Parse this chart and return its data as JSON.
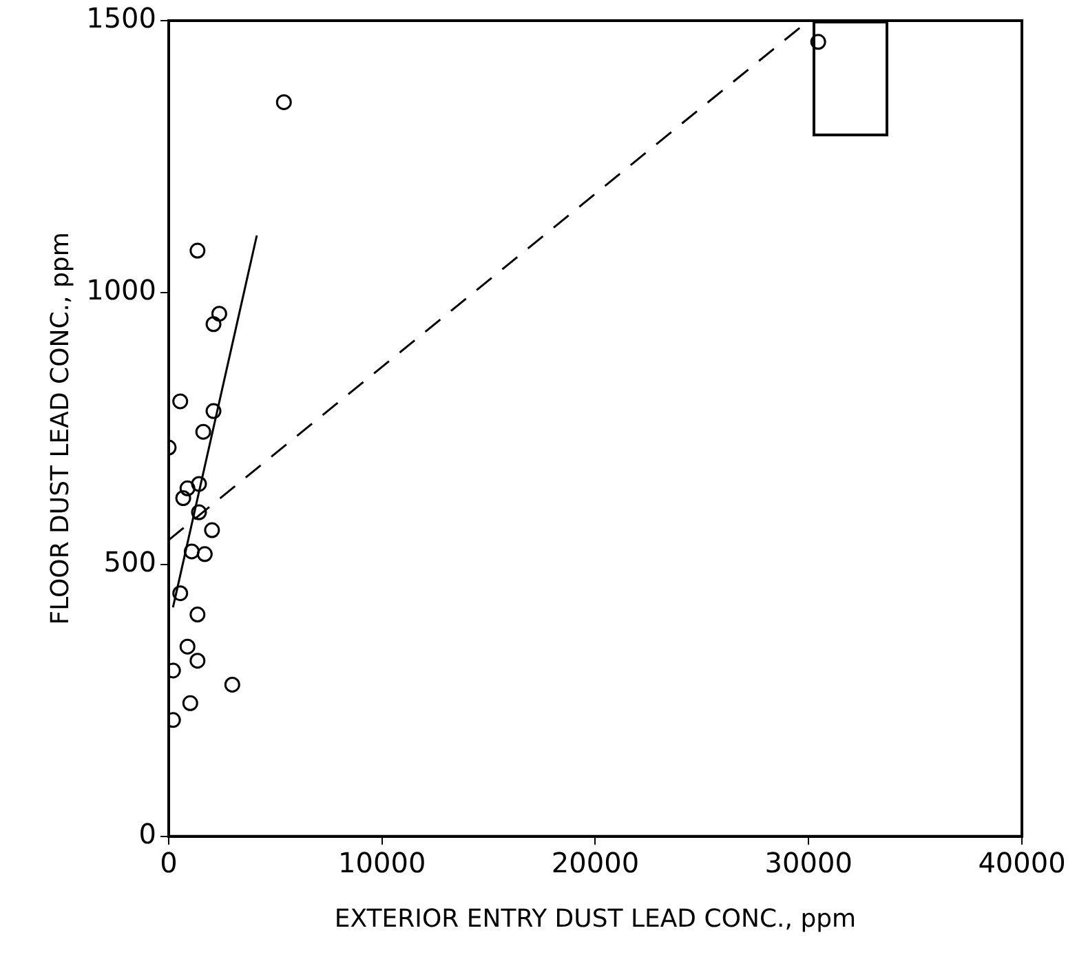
{
  "chart_data": {
    "type": "scatter",
    "xlabel": "EXTERIOR ENTRY DUST LEAD CONC., ppm",
    "ylabel": "FLOOR DUST LEAD CONC., ppm",
    "xlim": [
      0,
      40000
    ],
    "xticks": [
      0,
      10000,
      20000,
      30000,
      40000
    ],
    "ylim": [
      0,
      1500
    ],
    "yticks": [
      0,
      500,
      1000,
      1500
    ],
    "grid": false,
    "legend": false,
    "series": [
      {
        "color": "#000000",
        "marker": "circle",
        "x": [
          5400,
          30450,
          1350,
          2370,
          2100,
          540,
          2100,
          1620,
          0,
          880,
          680,
          1420,
          1420,
          2030,
          1080,
          1690,
          540,
          1350,
          880,
          1350,
          200,
          2980,
          1010,
          200
        ],
        "values": [
          1350,
          1461,
          1077,
          961,
          942,
          800,
          782,
          744,
          715,
          640,
          622,
          648,
          596,
          563,
          524,
          519,
          447,
          408,
          349,
          323,
          305,
          279,
          245,
          214
        ]
      },
      {
        "type": "line",
        "color": "#000000",
        "line_style": "solid",
        "marker": "none",
        "x": [
          200,
          4130
        ],
        "values": [
          421,
          1105
        ]
      },
      {
        "type": "line",
        "color": "#000000",
        "line_style": "dashed",
        "marker": "none",
        "x": [
          0,
          30000
        ],
        "values": [
          545,
          1500
        ]
      }
    ]
  }
}
